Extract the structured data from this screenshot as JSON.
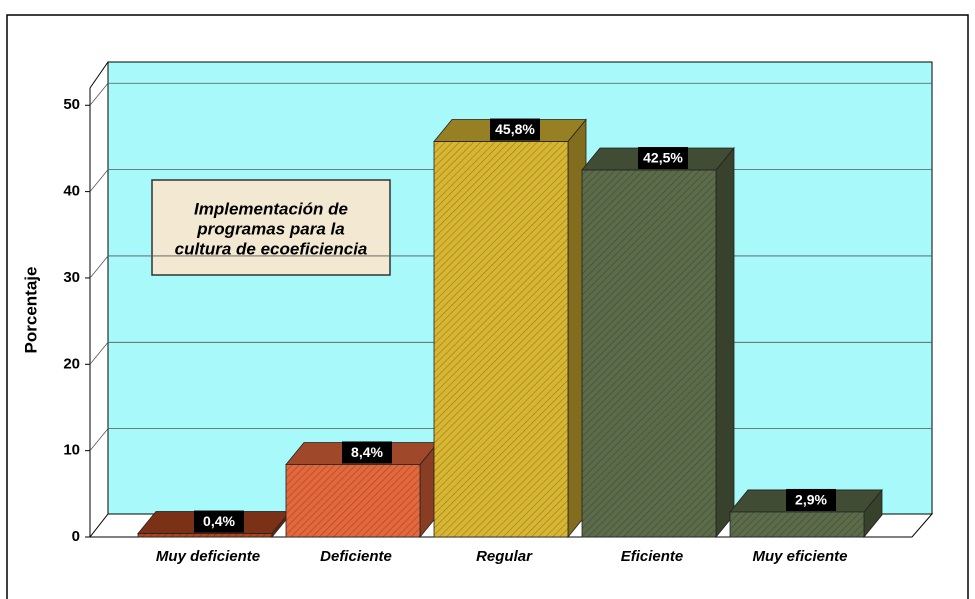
{
  "chart_data": {
    "type": "bar3d",
    "ylabel": "Porcentaje",
    "annotation": [
      "Implementación de",
      "programas para la",
      "cultura de ecoeficiencia"
    ],
    "categories": [
      "Muy deficiente",
      "Deficiente",
      "Regular",
      "Eficiente",
      "Muy eficiente"
    ],
    "values": [
      0.4,
      8.4,
      45.8,
      42.5,
      2.9
    ],
    "value_labels": [
      "0,4%",
      "8,4%",
      "45,8%",
      "42,5%",
      "2,9%"
    ],
    "colors": [
      "#b0461e",
      "#e4683c",
      "#d8b632",
      "#5c6c4a",
      "#5c6c4a"
    ],
    "ylim": [
      0,
      52
    ],
    "yticks": [
      0,
      10,
      20,
      30,
      40,
      50
    ],
    "grid": true
  }
}
